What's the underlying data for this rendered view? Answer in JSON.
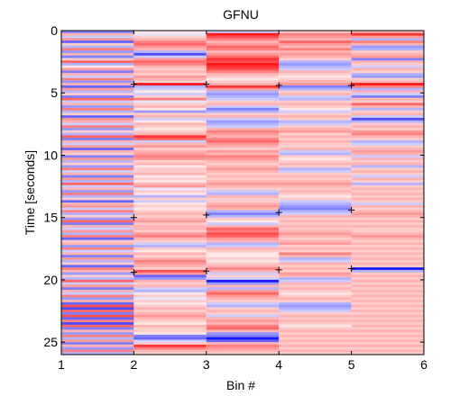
{
  "chart_data": {
    "type": "heatmap",
    "title": "GFNU",
    "xlabel": "Bin #",
    "ylabel": "Time [seconds]",
    "xlim": [
      1,
      6
    ],
    "ylim": [
      0,
      26
    ],
    "y_reversed": true,
    "x_ticks": [
      1,
      2,
      3,
      4,
      5,
      6
    ],
    "y_ticks": [
      0,
      5,
      10,
      15,
      20,
      25
    ],
    "grid": false,
    "legend": "none",
    "colormap": {
      "negative": "#0000ff",
      "zero": "#ffffff",
      "positive": "#ff0000"
    },
    "value_range": [
      -1,
      1
    ],
    "time_step": 0.2,
    "bin_edges": [
      1,
      2,
      3,
      4,
      5,
      6
    ],
    "markers": [
      {
        "x": 2.0,
        "y": 4.3
      },
      {
        "x": 3.0,
        "y": 4.3
      },
      {
        "x": 4.0,
        "y": 4.4
      },
      {
        "x": 5.0,
        "y": 4.4
      },
      {
        "x": 2.0,
        "y": 15.0
      },
      {
        "x": 3.0,
        "y": 14.8
      },
      {
        "x": 4.0,
        "y": 14.6
      },
      {
        "x": 5.0,
        "y": 14.4
      },
      {
        "x": 2.0,
        "y": 19.4
      },
      {
        "x": 3.0,
        "y": 19.3
      },
      {
        "x": 4.0,
        "y": 19.2
      },
      {
        "x": 5.0,
        "y": 19.1
      }
    ],
    "bins": [
      {
        "name": "Bin 1-2",
        "values": [
          -0.5,
          0.3,
          -0.2,
          0.4,
          -0.6,
          0.2,
          -0.3,
          0.5,
          -0.4,
          0.3,
          -0.5,
          0.2,
          0.6,
          -0.3,
          0.1,
          0.4,
          -0.5,
          0.3,
          -0.2,
          0.5,
          -0.4,
          0.3,
          -0.6,
          0.4,
          -0.3,
          0.2,
          -0.5,
          0.6,
          -0.2,
          0.3,
          -0.4,
          0.5,
          -0.3,
          0.2,
          -0.6,
          0.4,
          0.3,
          -0.2,
          0.5,
          -0.4,
          0.2,
          -0.3,
          0.6,
          -0.5,
          0.3,
          -0.2,
          0.4,
          -0.6,
          0.3,
          0.2,
          -0.5,
          0.4,
          -0.3,
          0.2,
          -0.4,
          0.5,
          -0.2,
          0.3,
          -0.5,
          0.4,
          -0.3,
          0.6,
          -0.2,
          0.3,
          -0.4,
          0.5,
          -0.3,
          0.2,
          -0.6,
          0.3,
          0.4,
          -0.2,
          0.5,
          -0.3,
          0.2,
          -0.4,
          0.6,
          -0.5,
          0.3,
          -0.2,
          0.4,
          -0.3,
          0.5,
          -0.6,
          0.2,
          0.3,
          -0.4,
          0.5,
          -0.2,
          0.3,
          -0.5,
          0.4,
          -0.3,
          0.2,
          -0.6,
          0.5,
          0.3,
          -0.4,
          0.2,
          -0.3,
          0.6,
          -0.2,
          0.4,
          -0.5,
          0.3,
          -0.2,
          0.5,
          -0.4,
          0.3,
          -0.6,
          0.7,
          -0.7,
          0.6,
          -0.5,
          0.7,
          -0.6,
          0.5,
          -0.7,
          0.6,
          -0.5,
          0.3,
          -0.4,
          0.5,
          -0.3,
          0.4,
          -0.5,
          0.3,
          -0.4,
          0.5,
          -0.3
        ]
      },
      {
        "name": "Bin 2-3",
        "values": [
          0.1,
          -0.1,
          0.2,
          0.3,
          0.5,
          0.6,
          0.4,
          0.3,
          -0.3,
          -0.7,
          -0.2,
          0.4,
          0.6,
          0.5,
          0.3,
          0.2,
          0.3,
          0.2,
          0.4,
          0.3,
          0.2,
          0.9,
          -0.3,
          -0.2,
          0.1,
          -0.2,
          0.2,
          0.5,
          -0.1,
          0.2,
          0.3,
          0.1,
          -0.4,
          0.2,
          0.3,
          -0.2,
          0.1,
          0.3,
          0.2,
          0.1,
          0.2,
          0.3,
          0.8,
          0.6,
          -0.2,
          0.3,
          0.4,
          0.2,
          0.3,
          0.4,
          0.5,
          0.4,
          0.2,
          0.3,
          0.1,
          0.2,
          0.2,
          0.3,
          0.1,
          0.2,
          0.1,
          0.3,
          0.4,
          -0.1,
          0.2,
          0.1,
          -0.3,
          0.2,
          -0.2,
          0.1,
          0.2,
          0.1,
          0.2,
          0.3,
          0.2,
          0.3,
          0.4,
          0.2,
          0.3,
          0.3,
          0.2,
          0.4,
          0.5,
          0.3,
          0.2,
          -0.2,
          -0.3,
          0.2,
          0.1,
          0.3,
          0.2,
          0.3,
          0.5,
          0.4,
          0.3,
          0.2,
          0.7,
          0.4,
          -0.6,
          -0.4,
          0.3,
          0.2,
          0.3,
          -0.2,
          -0.3,
          0.1,
          0.2,
          -0.1,
          0.2,
          0.1,
          0.2,
          0.3,
          0.2,
          0.3,
          0.4,
          0.3,
          0.2,
          0.1,
          0.3,
          0.2,
          0.2,
          0.1,
          -0.5,
          -0.6,
          -0.2,
          0.2,
          0.8,
          0.5,
          0.3,
          0.2
        ]
      },
      {
        "name": "Bin 3-4",
        "values": [
          -0.2,
          0.9,
          0.7,
          0.5,
          0.3,
          0.4,
          0.6,
          0.5,
          0.3,
          0.4,
          0.6,
          0.8,
          0.7,
          0.9,
          0.8,
          0.7,
          0.5,
          0.3,
          0.2,
          0.1,
          0.2,
          0.3,
          0.8,
          0.4,
          -0.3,
          -0.4,
          -0.3,
          -0.2,
          0.2,
          0.3,
          -0.2,
          -0.5,
          -0.3,
          0.2,
          0.3,
          -0.2,
          -0.4,
          -0.3,
          -0.2,
          0.3,
          0.5,
          0.4,
          0.3,
          0.5,
          0.6,
          0.4,
          0.3,
          0.2,
          0.4,
          0.3,
          0.5,
          0.4,
          0.3,
          0.2,
          0.3,
          0.4,
          0.3,
          0.2,
          0.3,
          0.2,
          0.3,
          0.4,
          0.3,
          0.2,
          -0.2,
          -0.3,
          0.3,
          0.2,
          0.2,
          0.3,
          0.4,
          0.3,
          -0.3,
          -0.5,
          -0.3,
          0.2,
          0.1,
          -0.2,
          0.3,
          0.6,
          0.5,
          0.7,
          0.6,
          0.4,
          0.3,
          -0.3,
          -0.2,
          0.3,
          0.2,
          0.1,
          0.1,
          0.2,
          0.1,
          0.2,
          0.3,
          0.5,
          0.3,
          -0.2,
          0.2,
          -0.2,
          -0.9,
          -0.4,
          0.3,
          -0.3,
          0.4,
          0.6,
          0.4,
          0.3,
          0.2,
          -0.2,
          -0.3,
          0.2,
          0.3,
          0.2,
          -0.2,
          0.3,
          0.4,
          0.3,
          0.5,
          0.6,
          0.3,
          -0.4,
          -0.5,
          -0.9,
          -0.6,
          0.3,
          0.5,
          0.4,
          0.3,
          0.2
        ]
      },
      {
        "name": "Bin 4-5",
        "values": [
          0.2,
          0.5,
          0.4,
          0.3,
          0.6,
          0.4,
          0.3,
          0.5,
          0.3,
          0.4,
          0.3,
          0.2,
          -0.3,
          -0.4,
          -0.3,
          -0.2,
          0.3,
          0.2,
          0.1,
          0.2,
          0.3,
          0.4,
          -0.5,
          -0.3,
          0.2,
          0.3,
          -0.2,
          -0.3,
          0.2,
          0.3,
          0.2,
          0.1,
          -0.2,
          0.2,
          0.3,
          0.2,
          -0.3,
          -0.2,
          0.2,
          0.3,
          0.4,
          0.2,
          0.3,
          0.2,
          0.3,
          0.2,
          0.2,
          0.3,
          -0.2,
          -0.3,
          0.2,
          0.1,
          0.2,
          0.3,
          0.2,
          -0.3,
          -0.2,
          0.2,
          0.3,
          0.2,
          0.3,
          0.4,
          0.3,
          0.2,
          0.3,
          0.2,
          0.1,
          0.2,
          -0.2,
          -0.3,
          -0.4,
          -0.5,
          -0.3,
          -0.2,
          0.3,
          0.2,
          0.3,
          0.2,
          0.3,
          0.2,
          0.3,
          0.4,
          0.3,
          0.2,
          0.3,
          0.4,
          0.2,
          0.3,
          0.2,
          0.5,
          0.3,
          -0.3,
          -0.2,
          0.3,
          0.2,
          0.3,
          0.2,
          0.4,
          0.3,
          -0.3,
          -0.2,
          0.3,
          0.2,
          0.3,
          0.2,
          0.1,
          0.2,
          0.3,
          0.2,
          -0.3,
          -0.4,
          -0.3,
          -0.2,
          0.2,
          0.3,
          0.2,
          0.3,
          0.2,
          0.1,
          0.2,
          0.3,
          0.2,
          0.3,
          0.2,
          0.3,
          0.2,
          0.3,
          0.2,
          0.3,
          0.2
        ]
      },
      {
        "name": "Bin 5-6",
        "values": [
          0.3,
          0.8,
          0.4,
          -0.3,
          0.5,
          0.3,
          -0.4,
          -0.3,
          0.2,
          0.3,
          0.4,
          -0.5,
          0.3,
          0.2,
          -0.2,
          0.3,
          0.2,
          -0.3,
          -0.4,
          0.2,
          0.3,
          0.9,
          0.5,
          -0.3,
          0.3,
          -0.2,
          -0.5,
          0.3,
          0.2,
          0.6,
          0.3,
          -0.3,
          0.2,
          0.3,
          -0.2,
          -0.7,
          -0.3,
          0.2,
          0.3,
          0.2,
          0.4,
          0.5,
          0.3,
          0.2,
          -0.3,
          -0.2,
          0.2,
          0.3,
          0.4,
          0.3,
          -0.2,
          0.3,
          0.2,
          0.3,
          -0.3,
          0.2,
          0.3,
          0.2,
          -0.2,
          0.3,
          0.2,
          -0.3,
          0.2,
          0.3,
          0.2,
          0.3,
          0.2,
          0.3,
          0.2,
          -0.2,
          0.3,
          0.2,
          0.3,
          0.4,
          0.3,
          0.2,
          0.3,
          0.2,
          0.3,
          0.2,
          0.2,
          0.3,
          0.4,
          0.3,
          0.2,
          0.3,
          0.2,
          0.3,
          0.2,
          0.3,
          0.2,
          0.3,
          0.2,
          0.3,
          0.2,
          -0.9,
          -0.3,
          0.2,
          0.3,
          0.2,
          0.3,
          0.2,
          0.3,
          0.2,
          0.3,
          0.2,
          0.3,
          0.2,
          0.3,
          0.2,
          0.3,
          0.2,
          0.3,
          0.2,
          0.3,
          0.2,
          0.3,
          0.2,
          0.3,
          0.2,
          0.3,
          0.2,
          0.3,
          0.2,
          0.3,
          0.2,
          0.3,
          0.2,
          0.3,
          0.2
        ]
      }
    ]
  }
}
